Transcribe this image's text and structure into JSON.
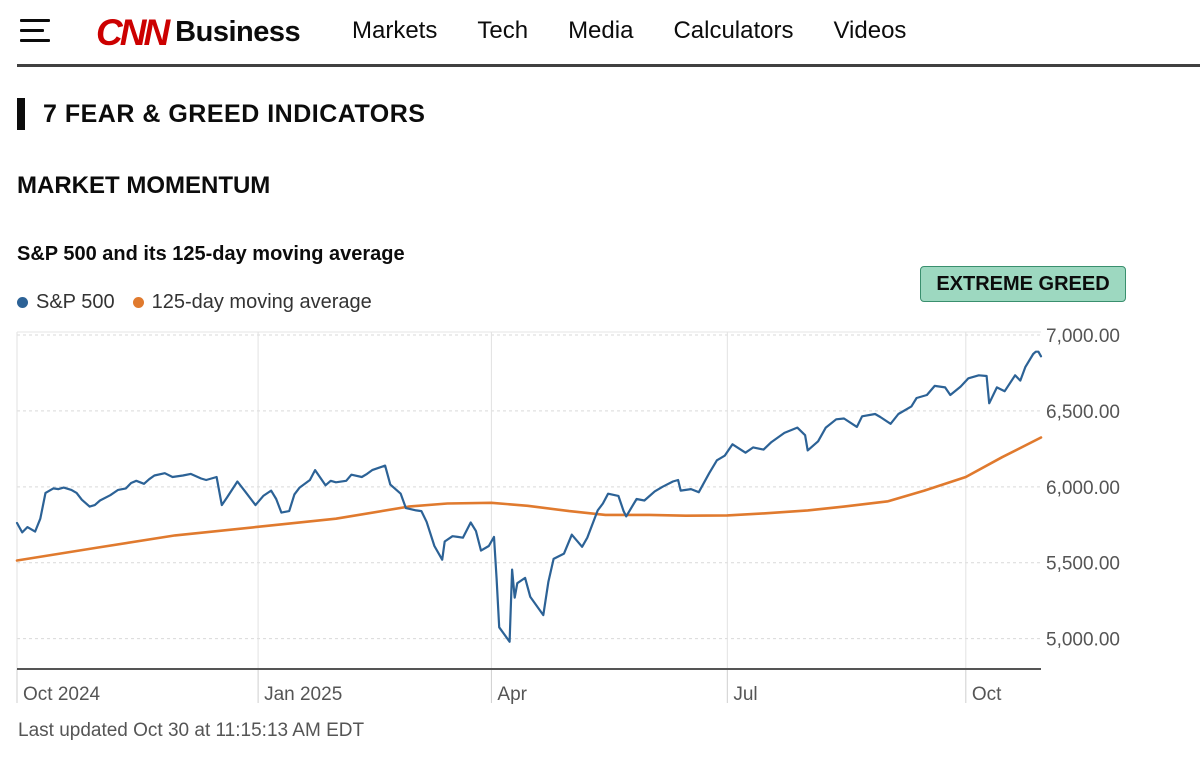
{
  "header": {
    "logo_mark": "CNN",
    "logo_suffix": "Business",
    "nav": [
      "Markets",
      "Tech",
      "Media",
      "Calculators",
      "Videos"
    ]
  },
  "section": {
    "title": "7 FEAR & GREED INDICATORS",
    "subsection": "MARKET MOMENTUM"
  },
  "badge": {
    "label": "EXTREME GREED",
    "color": "#9dd8c0"
  },
  "footer": {
    "updated": "Last updated Oct 30 at 11:15:13 AM EDT"
  },
  "colors": {
    "sp500": "#2c6296",
    "ma": "#e07a2e"
  },
  "chart_data": {
    "type": "line",
    "title": "S&P 500 and its 125-day moving average",
    "x_tick_labels": [
      "Oct 2024",
      "Jan 2025",
      "Apr",
      "Jul",
      "Oct"
    ],
    "x_ticks": [
      "2024-09-30",
      "2025-01-01",
      "2025-04-01",
      "2025-07-01",
      "2025-10-01"
    ],
    "xlim": [
      "2024-09-30",
      "2025-10-30"
    ],
    "y_tick_labels": [
      "7,000.00",
      "6,500.00",
      "6,000.00",
      "5,500.00",
      "5,000.00"
    ],
    "y_ticks": [
      7000,
      6500,
      6000,
      5500,
      5000
    ],
    "ylim": [
      4800,
      7020
    ],
    "grid": true,
    "legend": "top-left",
    "series": [
      {
        "name": "S&P 500",
        "points": [
          [
            "2024-09-30",
            5762
          ],
          [
            "2024-10-02",
            5700
          ],
          [
            "2024-10-04",
            5735
          ],
          [
            "2024-10-07",
            5705
          ],
          [
            "2024-10-09",
            5790
          ],
          [
            "2024-10-11",
            5960
          ],
          [
            "2024-10-14",
            5990
          ],
          [
            "2024-10-16",
            5985
          ],
          [
            "2024-10-18",
            5995
          ],
          [
            "2024-10-21",
            5980
          ],
          [
            "2024-10-23",
            5960
          ],
          [
            "2024-10-25",
            5915
          ],
          [
            "2024-10-28",
            5870
          ],
          [
            "2024-10-30",
            5880
          ],
          [
            "2024-11-01",
            5910
          ],
          [
            "2024-11-05",
            5945
          ],
          [
            "2024-11-08",
            5980
          ],
          [
            "2024-11-11",
            5990
          ],
          [
            "2024-11-13",
            6025
          ],
          [
            "2024-11-15",
            6040
          ],
          [
            "2024-11-18",
            6020
          ],
          [
            "2024-11-20",
            6050
          ],
          [
            "2024-11-22",
            6075
          ],
          [
            "2024-11-26",
            6090
          ],
          [
            "2024-11-29",
            6065
          ],
          [
            "2024-12-03",
            6075
          ],
          [
            "2024-12-06",
            6085
          ],
          [
            "2024-12-10",
            6055
          ],
          [
            "2024-12-12",
            6045
          ],
          [
            "2024-12-16",
            6065
          ],
          [
            "2024-12-18",
            5880
          ],
          [
            "2024-12-20",
            5930
          ],
          [
            "2024-12-24",
            6035
          ],
          [
            "2024-12-27",
            5970
          ],
          [
            "2024-12-31",
            5880
          ],
          [
            "2025-01-03",
            5940
          ],
          [
            "2025-01-06",
            5975
          ],
          [
            "2025-01-08",
            5920
          ],
          [
            "2025-01-10",
            5830
          ],
          [
            "2025-01-13",
            5840
          ],
          [
            "2025-01-15",
            5950
          ],
          [
            "2025-01-17",
            5995
          ],
          [
            "2025-01-21",
            6045
          ],
          [
            "2025-01-23",
            6110
          ],
          [
            "2025-01-27",
            6010
          ],
          [
            "2025-01-29",
            6040
          ],
          [
            "2025-01-31",
            6030
          ],
          [
            "2025-02-04",
            6040
          ],
          [
            "2025-02-06",
            6080
          ],
          [
            "2025-02-10",
            6065
          ],
          [
            "2025-02-12",
            6085
          ],
          [
            "2025-02-14",
            6110
          ],
          [
            "2025-02-19",
            6140
          ],
          [
            "2025-02-21",
            6015
          ],
          [
            "2025-02-25",
            5955
          ],
          [
            "2025-02-27",
            5860
          ],
          [
            "2025-03-03",
            5845
          ],
          [
            "2025-03-05",
            5840
          ],
          [
            "2025-03-07",
            5770
          ],
          [
            "2025-03-10",
            5610
          ],
          [
            "2025-03-13",
            5520
          ],
          [
            "2025-03-14",
            5640
          ],
          [
            "2025-03-17",
            5675
          ],
          [
            "2025-03-19",
            5670
          ],
          [
            "2025-03-21",
            5665
          ],
          [
            "2025-03-24",
            5765
          ],
          [
            "2025-03-26",
            5710
          ],
          [
            "2025-03-28",
            5580
          ],
          [
            "2025-03-31",
            5610
          ],
          [
            "2025-04-02",
            5670
          ],
          [
            "2025-04-03",
            5395
          ],
          [
            "2025-04-04",
            5075
          ],
          [
            "2025-04-08",
            4980
          ],
          [
            "2025-04-09",
            5455
          ],
          [
            "2025-04-10",
            5270
          ],
          [
            "2025-04-11",
            5365
          ],
          [
            "2025-04-14",
            5400
          ],
          [
            "2025-04-16",
            5275
          ],
          [
            "2025-04-21",
            5155
          ],
          [
            "2025-04-23",
            5375
          ],
          [
            "2025-04-25",
            5525
          ],
          [
            "2025-04-29",
            5560
          ],
          [
            "2025-05-02",
            5685
          ],
          [
            "2025-05-06",
            5605
          ],
          [
            "2025-05-08",
            5665
          ],
          [
            "2025-05-12",
            5845
          ],
          [
            "2025-05-14",
            5890
          ],
          [
            "2025-05-16",
            5955
          ],
          [
            "2025-05-20",
            5940
          ],
          [
            "2025-05-22",
            5840
          ],
          [
            "2025-05-23",
            5805
          ],
          [
            "2025-05-27",
            5920
          ],
          [
            "2025-05-30",
            5910
          ],
          [
            "2025-06-03",
            5970
          ],
          [
            "2025-06-06",
            6000
          ],
          [
            "2025-06-10",
            6035
          ],
          [
            "2025-06-12",
            6045
          ],
          [
            "2025-06-13",
            5975
          ],
          [
            "2025-06-17",
            5985
          ],
          [
            "2025-06-20",
            5965
          ],
          [
            "2025-06-24",
            6090
          ],
          [
            "2025-06-27",
            6175
          ],
          [
            "2025-06-30",
            6205
          ],
          [
            "2025-07-03",
            6280
          ],
          [
            "2025-07-08",
            6225
          ],
          [
            "2025-07-11",
            6260
          ],
          [
            "2025-07-15",
            6245
          ],
          [
            "2025-07-18",
            6295
          ],
          [
            "2025-07-23",
            6355
          ],
          [
            "2025-07-28",
            6390
          ],
          [
            "2025-07-31",
            6340
          ],
          [
            "2025-08-01",
            6240
          ],
          [
            "2025-08-05",
            6300
          ],
          [
            "2025-08-08",
            6390
          ],
          [
            "2025-08-12",
            6445
          ],
          [
            "2025-08-15",
            6450
          ],
          [
            "2025-08-20",
            6395
          ],
          [
            "2025-08-22",
            6465
          ],
          [
            "2025-08-27",
            6480
          ],
          [
            "2025-08-29",
            6460
          ],
          [
            "2025-09-02",
            6415
          ],
          [
            "2025-09-05",
            6480
          ],
          [
            "2025-09-10",
            6530
          ],
          [
            "2025-09-12",
            6585
          ],
          [
            "2025-09-16",
            6605
          ],
          [
            "2025-09-19",
            6665
          ],
          [
            "2025-09-23",
            6655
          ],
          [
            "2025-09-25",
            6605
          ],
          [
            "2025-09-29",
            6660
          ],
          [
            "2025-10-02",
            6715
          ],
          [
            "2025-10-06",
            6735
          ],
          [
            "2025-10-09",
            6730
          ],
          [
            "2025-10-10",
            6550
          ],
          [
            "2025-10-13",
            6655
          ],
          [
            "2025-10-16",
            6630
          ],
          [
            "2025-10-20",
            6735
          ],
          [
            "2025-10-22",
            6700
          ],
          [
            "2025-10-24",
            6790
          ],
          [
            "2025-10-27",
            6875
          ],
          [
            "2025-10-28",
            6890
          ],
          [
            "2025-10-29",
            6890
          ],
          [
            "2025-10-30",
            6860
          ]
        ]
      },
      {
        "name": "125-day moving average",
        "points": [
          [
            "2024-09-30",
            5515
          ],
          [
            "2024-10-31",
            5600
          ],
          [
            "2024-11-30",
            5680
          ],
          [
            "2024-12-31",
            5735
          ],
          [
            "2025-01-31",
            5790
          ],
          [
            "2025-02-28",
            5870
          ],
          [
            "2025-03-15",
            5890
          ],
          [
            "2025-04-01",
            5895
          ],
          [
            "2025-04-15",
            5875
          ],
          [
            "2025-05-01",
            5840
          ],
          [
            "2025-05-15",
            5815
          ],
          [
            "2025-06-01",
            5815
          ],
          [
            "2025-06-15",
            5810
          ],
          [
            "2025-07-01",
            5812
          ],
          [
            "2025-07-15",
            5825
          ],
          [
            "2025-08-01",
            5845
          ],
          [
            "2025-08-15",
            5870
          ],
          [
            "2025-09-01",
            5905
          ],
          [
            "2025-09-15",
            5975
          ],
          [
            "2025-10-01",
            6065
          ],
          [
            "2025-10-15",
            6195
          ],
          [
            "2025-10-30",
            6325
          ]
        ]
      }
    ]
  }
}
